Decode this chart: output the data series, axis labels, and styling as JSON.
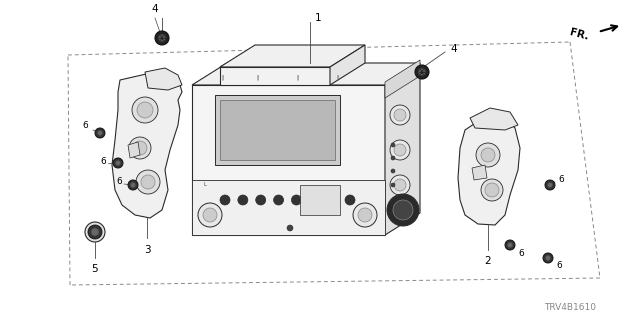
{
  "bg_color": "#ffffff",
  "lc": "#2a2a2a",
  "lc_light": "#666666",
  "fig_width": 6.4,
  "fig_height": 3.2,
  "dpi": 100,
  "watermark": "TRV4B1610",
  "fr_label": "FR."
}
